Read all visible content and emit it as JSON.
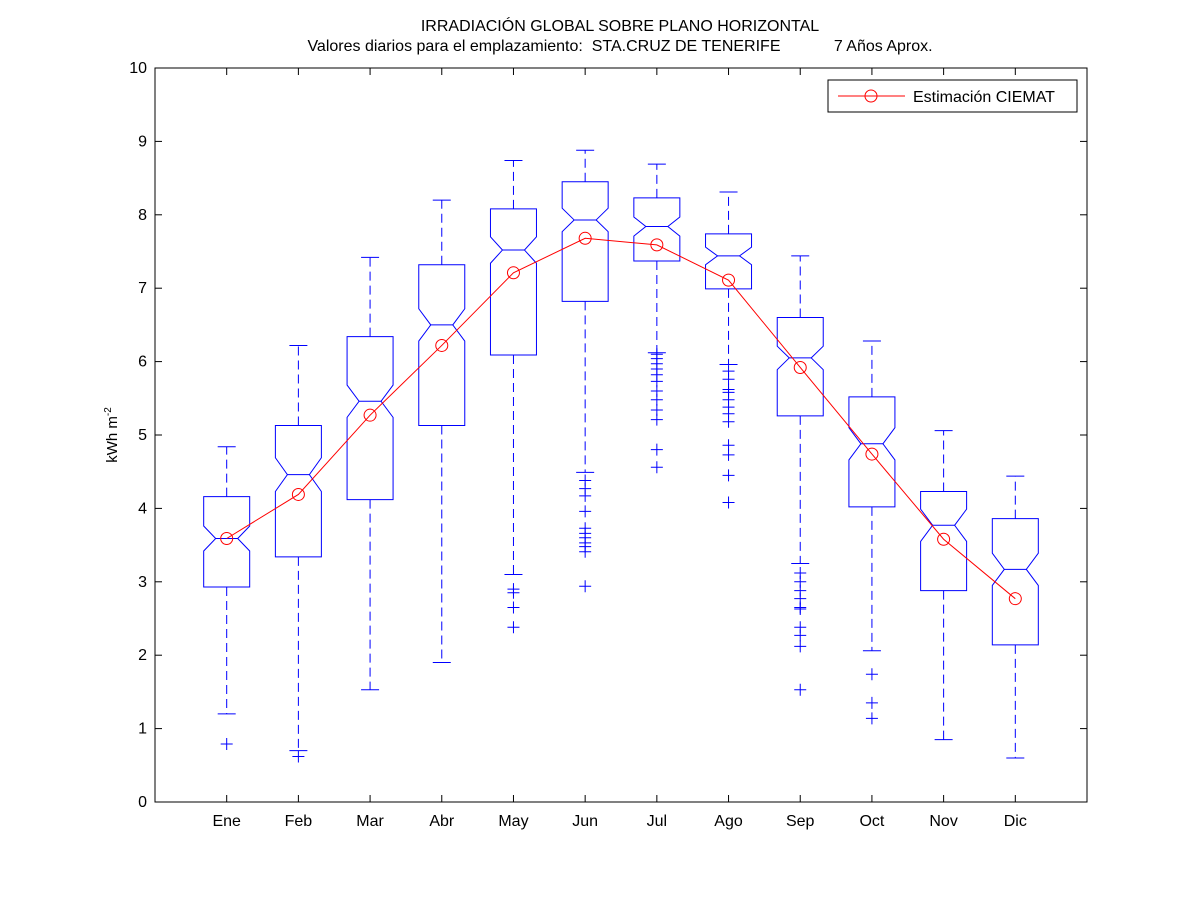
{
  "chart_data": {
    "type": "boxplot",
    "title": "IRRADIACIÓN GLOBAL SOBRE PLANO HORIZONTAL",
    "subtitle": "Valores diarios para el emplazamiento:  STA.CRUZ DE TENERIFE            7 Años Aprox.",
    "xlabel": "",
    "ylabel_base": "kWh m",
    "ylabel_sup": "-2",
    "ylim": [
      0,
      10
    ],
    "yticks": [
      "0",
      "1",
      "2",
      "3",
      "4",
      "5",
      "6",
      "7",
      "8",
      "9",
      "10"
    ],
    "grid": false,
    "legend_position": "top-right",
    "notched": true,
    "box_color": "#0000ff",
    "line_color": "#ff0000",
    "categories": [
      "Ene",
      "Feb",
      "Mar",
      "Abr",
      "May",
      "Jun",
      "Jul",
      "Ago",
      "Sep",
      "Oct",
      "Nov",
      "Dic"
    ],
    "boxes": [
      {
        "whisker_low": 1.2,
        "q1": 2.93,
        "median": 3.59,
        "q3": 4.16,
        "notch_low": 3.42,
        "notch_high": 3.76,
        "whisker_high": 4.84,
        "outliers": [
          0.79
        ]
      },
      {
        "whisker_low": 0.7,
        "q1": 3.34,
        "median": 4.46,
        "q3": 5.13,
        "notch_low": 4.23,
        "notch_high": 4.69,
        "whisker_high": 6.22,
        "outliers": [
          0.62
        ]
      },
      {
        "whisker_low": 1.53,
        "q1": 4.12,
        "median": 5.46,
        "q3": 6.34,
        "notch_low": 5.24,
        "notch_high": 5.68,
        "whisker_high": 7.42,
        "outliers": []
      },
      {
        "whisker_low": 1.9,
        "q1": 5.13,
        "median": 6.5,
        "q3": 7.32,
        "notch_low": 6.28,
        "notch_high": 6.72,
        "whisker_high": 8.2,
        "outliers": []
      },
      {
        "whisker_low": 3.1,
        "q1": 6.09,
        "median": 7.52,
        "q3": 8.08,
        "notch_low": 7.34,
        "notch_high": 7.7,
        "whisker_high": 8.74,
        "outliers": [
          2.9,
          2.85,
          2.65,
          2.38
        ]
      },
      {
        "whisker_low": 4.49,
        "q1": 6.82,
        "median": 7.93,
        "q3": 8.45,
        "notch_low": 7.77,
        "notch_high": 8.09,
        "whisker_high": 8.88,
        "outliers": [
          4.38,
          4.27,
          4.17,
          3.96,
          3.73,
          3.66,
          3.6,
          3.53,
          3.48,
          3.41,
          2.94
        ]
      },
      {
        "whisker_low": 6.12,
        "q1": 7.37,
        "median": 7.84,
        "q3": 8.23,
        "notch_low": 7.71,
        "notch_high": 7.97,
        "whisker_high": 8.69,
        "outliers": [
          6.1,
          6.04,
          5.97,
          5.9,
          5.82,
          5.73,
          5.6,
          5.48,
          5.34,
          5.21,
          4.8,
          4.56
        ]
      },
      {
        "whisker_low": 5.96,
        "q1": 6.99,
        "median": 7.44,
        "q3": 7.74,
        "notch_low": 7.32,
        "notch_high": 7.56,
        "whisker_high": 8.31,
        "outliers": [
          5.87,
          5.76,
          5.62,
          5.58,
          5.48,
          5.38,
          5.29,
          5.18,
          4.86,
          4.73,
          4.45,
          4.08
        ]
      },
      {
        "whisker_low": 3.25,
        "q1": 5.26,
        "median": 6.05,
        "q3": 6.6,
        "notch_low": 5.89,
        "notch_high": 6.21,
        "whisker_high": 7.44,
        "outliers": [
          3.12,
          3.0,
          2.88,
          2.77,
          2.65,
          2.63,
          2.38,
          2.27,
          2.12,
          1.53
        ]
      },
      {
        "whisker_low": 2.06,
        "q1": 4.02,
        "median": 4.88,
        "q3": 5.52,
        "notch_low": 4.66,
        "notch_high": 5.1,
        "whisker_high": 6.28,
        "outliers": [
          1.74,
          1.35,
          1.14
        ]
      },
      {
        "whisker_low": 0.85,
        "q1": 2.88,
        "median": 3.77,
        "q3": 4.23,
        "notch_low": 3.55,
        "notch_high": 3.99,
        "whisker_high": 5.06,
        "outliers": []
      },
      {
        "whisker_low": 0.6,
        "q1": 2.14,
        "median": 3.17,
        "q3": 3.86,
        "notch_low": 2.95,
        "notch_high": 3.39,
        "whisker_high": 4.44,
        "outliers": []
      }
    ],
    "series": [
      {
        "name": "Estimación CIEMAT",
        "values": [
          3.59,
          4.19,
          5.27,
          6.22,
          7.21,
          7.68,
          7.59,
          7.11,
          5.92,
          4.74,
          3.58,
          2.77
        ]
      }
    ]
  }
}
